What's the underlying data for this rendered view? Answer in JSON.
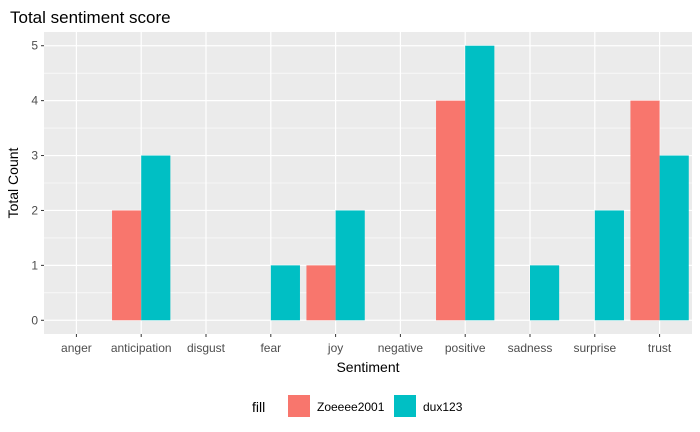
{
  "chart_data": {
    "type": "bar",
    "title": "Total sentiment score",
    "xlabel": "Sentiment",
    "ylabel": "Total Count",
    "categories": [
      "anger",
      "anticipation",
      "disgust",
      "fear",
      "joy",
      "negative",
      "positive",
      "sadness",
      "surprise",
      "trust"
    ],
    "series": [
      {
        "name": "Zoeeee2001",
        "color": "#F8766D",
        "values": [
          0,
          2,
          0,
          0,
          1,
          0,
          4,
          0,
          0,
          4
        ]
      },
      {
        "name": "dux123",
        "color": "#00BFC4",
        "values": [
          0,
          3,
          0,
          1,
          2,
          0,
          5,
          1,
          2,
          3
        ]
      }
    ],
    "ylim": [
      -0.25,
      5.25
    ],
    "yticks": [
      0,
      1,
      2,
      3,
      4,
      5
    ],
    "grid": true,
    "panel_background": "#EBEBEB",
    "grid_color": "#FFFFFF",
    "legend": {
      "title": "fill",
      "position": "bottom"
    }
  }
}
